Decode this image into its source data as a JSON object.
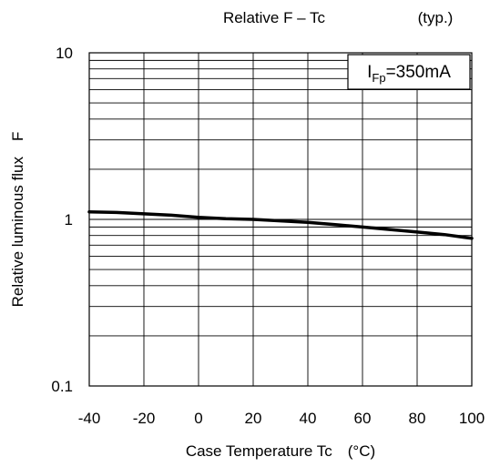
{
  "chart_data": {
    "type": "line",
    "title": "Relative F – Tc",
    "subtitle": "(typ.)",
    "xlabel": "Case Temperature Tc　(°C)",
    "ylabel": "Relative luminous flux　F",
    "x_ticks": [
      "-40",
      "-20",
      "0",
      "20",
      "40",
      "60",
      "80",
      "100"
    ],
    "y_ticks": [
      "0.1",
      "1",
      "10"
    ],
    "xlim": [
      -40,
      100
    ],
    "ylim": [
      0.1,
      10
    ],
    "y_scale": "log",
    "grid": true,
    "annotation": {
      "prefix": "I",
      "subscript": "Fp",
      "suffix": "=350mA"
    },
    "series": [
      {
        "x": [
          -40,
          -30,
          -20,
          -10,
          0,
          10,
          20,
          30,
          40,
          50,
          60,
          70,
          80,
          90,
          100
        ],
        "values": [
          1.11,
          1.1,
          1.08,
          1.06,
          1.03,
          1.01,
          1.0,
          0.98,
          0.96,
          0.93,
          0.9,
          0.87,
          0.84,
          0.81,
          0.77
        ]
      }
    ]
  }
}
